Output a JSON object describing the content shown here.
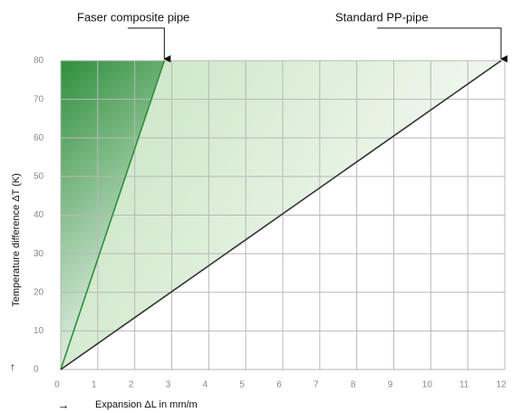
{
  "chart_data": {
    "type": "line",
    "x_label": "Expansion ΔL in mm/m",
    "y_label": "Temperature difference ΔT (K)",
    "series": [
      {
        "name": "Faser composite pipe",
        "color": "#2f8f3c",
        "x": [
          0,
          2.8
        ],
        "values": [
          0,
          80
        ]
      },
      {
        "name": "Standard PP-pipe",
        "color": "#333333",
        "x": [
          0,
          11.9
        ],
        "values": [
          0,
          80
        ]
      }
    ],
    "xlim": [
      0,
      12
    ],
    "xticks": [
      0,
      1,
      2,
      3,
      4,
      5,
      6,
      7,
      8,
      9,
      10,
      11,
      12
    ],
    "ylim": [
      0,
      80
    ],
    "yticks": [
      0,
      10,
      20,
      30,
      40,
      50,
      60,
      70,
      80
    ],
    "grid": true
  }
}
